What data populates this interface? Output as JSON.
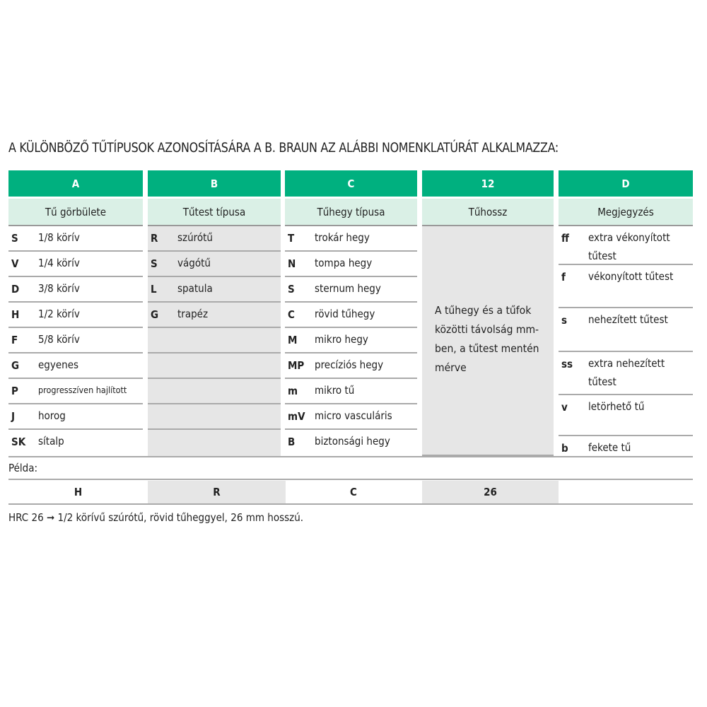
{
  "title": "A KÜLÖNBÖZŐ TŰTÍPUSOK AZONOSÍTÁSÁRA A B. BRAUN AZ ALÁBBI NOMENKLATÚRÁT ALKALMAZZA:",
  "columns": [
    {
      "key": "A",
      "label": "Tű görbülete",
      "items": [
        [
          "S",
          "1/8 körív"
        ],
        [
          "V",
          "1/4 körív"
        ],
        [
          "D",
          "3/8 körív"
        ],
        [
          "H",
          "1/2 körív"
        ],
        [
          "F",
          "5/8 körív"
        ],
        [
          "G",
          "egyenes"
        ],
        [
          "P",
          "progresszíven hajlított"
        ],
        [
          "J",
          "horog"
        ],
        [
          "SK",
          "sítalp"
        ]
      ]
    },
    {
      "key": "B",
      "label": "Tűtest típusa",
      "items": [
        [
          "R",
          "szúrótű"
        ],
        [
          "S",
          "vágótű"
        ],
        [
          "L",
          "spatula"
        ],
        [
          "G",
          "trapéz"
        ],
        [
          "",
          ""
        ],
        [
          "",
          ""
        ],
        [
          "",
          ""
        ],
        [
          "",
          ""
        ],
        [
          "",
          ""
        ]
      ]
    },
    {
      "key": "C",
      "label": "Tűhegy típusa",
      "items": [
        [
          "T",
          "trokár hegy"
        ],
        [
          "N",
          "tompa hegy"
        ],
        [
          "S",
          "sternum hegy"
        ],
        [
          "C",
          "rövid tűhegy"
        ],
        [
          "M",
          "mikro hegy"
        ],
        [
          "MP",
          "precíziós hegy"
        ],
        [
          "m",
          "mikro tű"
        ],
        [
          "mV",
          "micro vasculáris"
        ],
        [
          "B",
          "biztonsági hegy"
        ]
      ]
    },
    {
      "key": "12",
      "label": "Tűhossz",
      "text": "A tűhegy és a tűfok közötti távolság mm-ben, a tűtest mentén mérve"
    },
    {
      "key": "D",
      "label": "Megjegyzés",
      "items": [
        [
          "ff",
          "extra vékonyított tűtest"
        ],
        [
          "f",
          "vékonyított tűtest"
        ],
        [
          "s",
          "nehezített tűtest"
        ],
        [
          "ss",
          "extra nehezített tűtest"
        ],
        [
          "v",
          "letörhető tű"
        ],
        [
          "b",
          "fekete tű"
        ]
      ]
    }
  ],
  "example": {
    "label": "Példa:",
    "values": [
      "H",
      "R",
      "C",
      "26",
      ""
    ],
    "explanation": "HRC 26 ➞ 1/2 körívű szúrótű, rövid tűheggyel, 26 mm hosszú."
  },
  "colors": {
    "header": "#00b07f",
    "subheader": "#daf0e6",
    "gray": "#e6e6e6"
  }
}
